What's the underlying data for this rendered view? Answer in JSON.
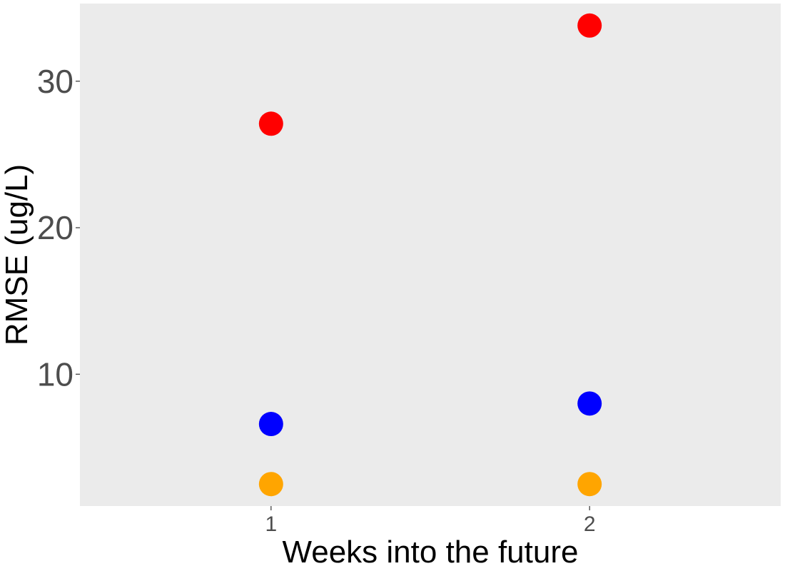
{
  "chart_data": {
    "type": "scatter",
    "title": "",
    "xlabel": "Weeks into the future",
    "ylabel": "RMSE (ug/L)",
    "categories": [
      "1",
      "2"
    ],
    "xlim": [
      0.4,
      2.6
    ],
    "ylim": [
      1,
      35.3
    ],
    "y_ticks": [
      10,
      20,
      30
    ],
    "y_tick_labels": [
      "10",
      "20",
      "30"
    ],
    "grid": false,
    "legend": "none",
    "panel_background": "#ebebeb",
    "series": [
      {
        "color": "#ff0000",
        "values": [
          27.1,
          33.8
        ]
      },
      {
        "color": "#0000ff",
        "values": [
          6.6,
          8.0
        ]
      },
      {
        "color": "#ffa500",
        "values": [
          2.5,
          2.5
        ]
      }
    ]
  }
}
